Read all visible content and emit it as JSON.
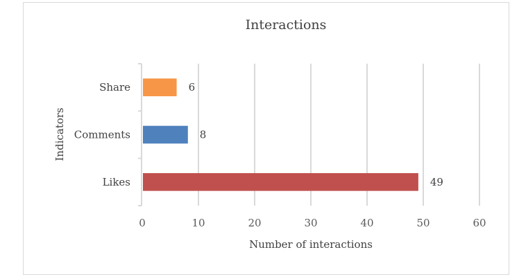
{
  "chart_data": {
    "type": "bar",
    "orientation": "horizontal",
    "title": "Interactions",
    "xlabel": "Number of interactions",
    "ylabel": "Indicators",
    "categories": [
      "Share",
      "Comments",
      "Likes"
    ],
    "values": [
      6,
      8,
      49
    ],
    "colors": [
      "#f79646",
      "#4f81bd",
      "#c0504d"
    ],
    "xlim": [
      0,
      60
    ],
    "xticks": [
      0,
      10,
      20,
      30,
      40,
      50,
      60
    ],
    "grid": "vertical",
    "legend": "none"
  }
}
